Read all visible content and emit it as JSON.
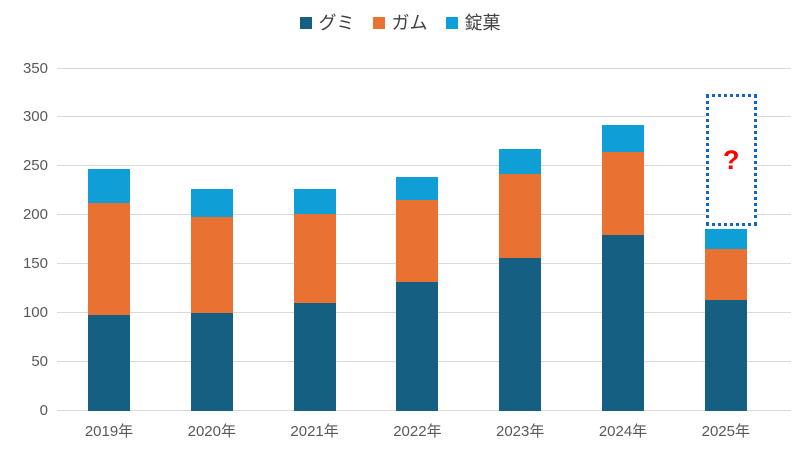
{
  "chart_data": {
    "type": "bar",
    "stacked": true,
    "title": "",
    "categories": [
      "2019年",
      "2020年",
      "2021年",
      "2022年",
      "2023年",
      "2024年",
      "2025年"
    ],
    "series": [
      {
        "key": "gummy",
        "name": "グミ",
        "color": "#156082",
        "values": [
          98,
          100,
          110,
          131,
          156,
          179,
          113
        ]
      },
      {
        "key": "gum",
        "name": "ガム",
        "color": "#E97132",
        "values": [
          114,
          98,
          91,
          84,
          86,
          85,
          52
        ]
      },
      {
        "key": "tablet",
        "name": "錠菓",
        "color": "#0F9ED5",
        "values": [
          35,
          28,
          25,
          24,
          25,
          28,
          21
        ]
      }
    ],
    "totals": [
      247,
      226,
      226,
      239,
      267,
      292,
      186
    ],
    "ylim": [
      0,
      350
    ],
    "yticks": [
      0,
      50,
      100,
      150,
      200,
      250,
      300,
      350
    ],
    "grid": true,
    "gridline_color": "#D9D9D9",
    "axis_label_color": "#595959",
    "legend_position": "top",
    "legend_text_color": "#404040",
    "annotation": {
      "label": "?",
      "label_color": "#FF0000",
      "category": "2025年",
      "box_border_color": "#1565C0",
      "box_fill": "#FFFFFF",
      "box_bottom_value": 189,
      "box_top_value": 323
    }
  }
}
